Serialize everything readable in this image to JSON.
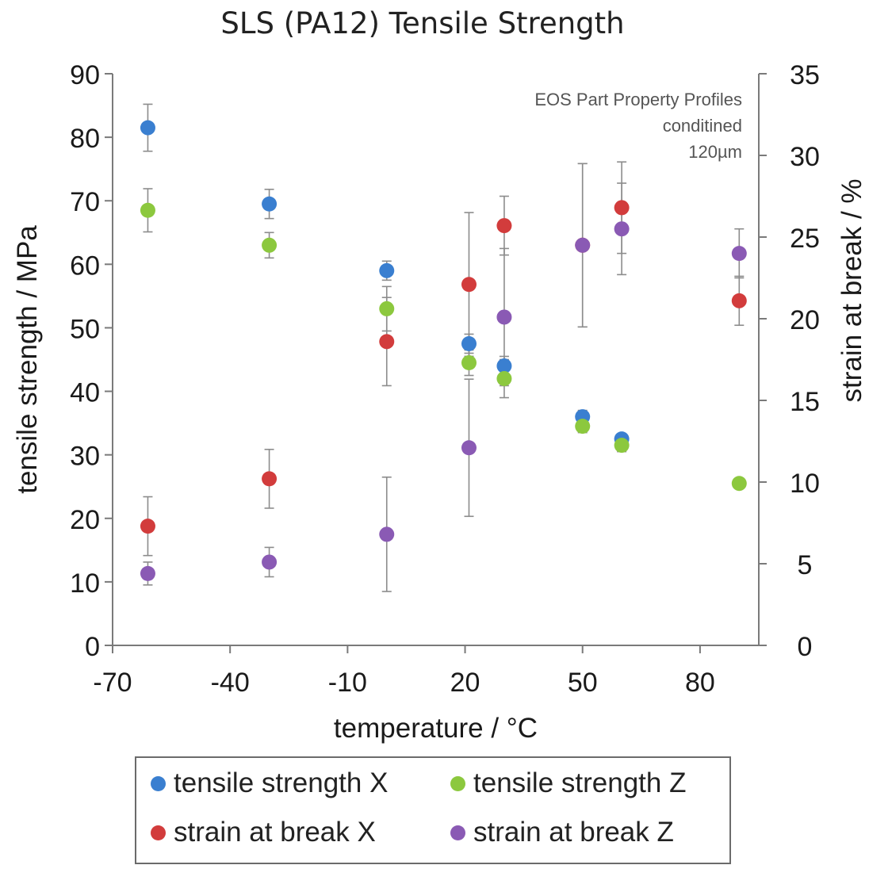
{
  "chart_data": {
    "type": "scatter",
    "title": "SLS (PA12) Tensile Strength",
    "xlabel": "temperature / °C",
    "ylabel": "tensile strength / MPa",
    "y2label": "strain at break / %",
    "xlim": [
      -70,
      95
    ],
    "ylim": [
      0,
      90
    ],
    "y2lim": [
      0,
      35
    ],
    "xticks": [
      -70,
      -40,
      -10,
      20,
      50,
      80
    ],
    "yticks": [
      0,
      10,
      20,
      30,
      40,
      50,
      60,
      70,
      80,
      90
    ],
    "y2ticks": [
      0,
      5,
      10,
      15,
      20,
      25,
      30,
      35
    ],
    "grid": false,
    "legend_position": "bottom",
    "annotation": [
      "EOS Part Property Profiles",
      "conditined",
      "120µm"
    ],
    "series": [
      {
        "name": "tensile strength X",
        "axis": "left",
        "color": "#3a7fd0",
        "points": [
          {
            "x": -61,
            "y": 81.5,
            "err": 3.7
          },
          {
            "x": -30,
            "y": 69.5,
            "err": 2.3
          },
          {
            "x": 0,
            "y": 59.0,
            "err": 1.5
          },
          {
            "x": 21,
            "y": 47.5,
            "err": 1.5
          },
          {
            "x": 30,
            "y": 44.0,
            "err": 1.5
          },
          {
            "x": 50,
            "y": 36.0,
            "err": 1.0
          },
          {
            "x": 60,
            "y": 32.5,
            "err": 0.8
          }
        ]
      },
      {
        "name": "tensile strength Z",
        "axis": "left",
        "color": "#8cc83e",
        "points": [
          {
            "x": -61,
            "y": 68.5,
            "err": 3.4
          },
          {
            "x": -30,
            "y": 63.0,
            "err": 2.0
          },
          {
            "x": 0,
            "y": 53.0,
            "err": 3.5
          },
          {
            "x": 21,
            "y": 44.5,
            "err": 2.0
          },
          {
            "x": 30,
            "y": 42.0,
            "err": 3.0
          },
          {
            "x": 50,
            "y": 34.5,
            "err": 1.0
          },
          {
            "x": 60,
            "y": 31.5,
            "err": 1.0
          },
          {
            "x": 90,
            "y": 25.5,
            "err": 0.0
          }
        ]
      },
      {
        "name": "strain at break X",
        "axis": "right",
        "color": "#d23c3c",
        "points": [
          {
            "x": -61,
            "y": 7.3,
            "err": 1.8
          },
          {
            "x": -30,
            "y": 10.2,
            "err": 1.8
          },
          {
            "x": 0,
            "y": 18.6,
            "err": 2.7
          },
          {
            "x": 21,
            "y": 22.1,
            "err": 4.4
          },
          {
            "x": 30,
            "y": 25.7,
            "err": 1.8
          },
          {
            "x": 50,
            "y": 24.5,
            "err": 5.0
          },
          {
            "x": 60,
            "y": 26.8,
            "err": 2.8
          },
          {
            "x": 90,
            "y": 21.1,
            "err": 1.5
          }
        ]
      },
      {
        "name": "strain at break Z",
        "axis": "right",
        "color": "#8a5ab4",
        "points": [
          {
            "x": -61,
            "y": 4.4,
            "err": 0.7
          },
          {
            "x": -30,
            "y": 5.1,
            "err": 0.9
          },
          {
            "x": 0,
            "y": 6.8,
            "err": 3.5
          },
          {
            "x": 21,
            "y": 12.1,
            "err": 4.2
          },
          {
            "x": 30,
            "y": 20.1,
            "err": 4.2
          },
          {
            "x": 50,
            "y": 24.5,
            "err": 5.0
          },
          {
            "x": 60,
            "y": 25.5,
            "err": 2.8
          },
          {
            "x": 90,
            "y": 24.0,
            "err": 1.5
          }
        ]
      }
    ]
  }
}
